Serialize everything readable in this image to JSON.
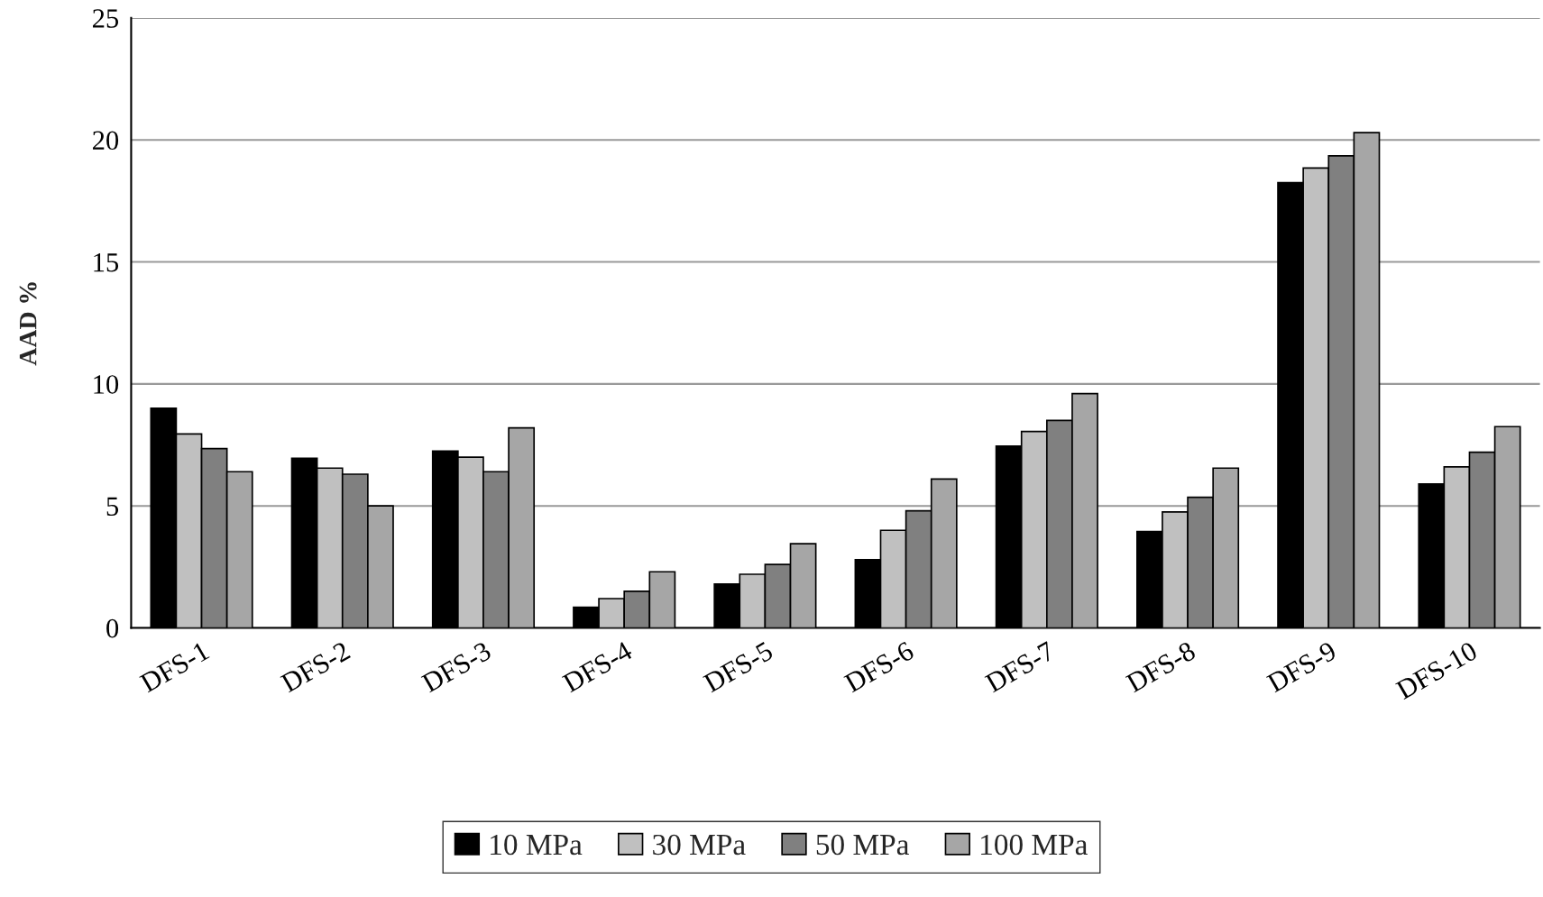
{
  "chart_data": {
    "type": "bar",
    "ylabel": "AAD %",
    "categories": [
      "DFS-1",
      "DFS-2",
      "DFS-3",
      "DFS-4",
      "DFS-5",
      "DFS-6",
      "DFS-7",
      "DFS-8",
      "DFS-9",
      "DFS-10"
    ],
    "series": [
      {
        "name": "10 MPa",
        "color": "#000000",
        "values": [
          9.0,
          6.95,
          7.25,
          0.85,
          1.8,
          2.8,
          7.45,
          3.95,
          18.25,
          5.9
        ]
      },
      {
        "name": "30 MPa",
        "color": "#c0c0c0",
        "values": [
          7.95,
          6.55,
          7.0,
          1.2,
          2.2,
          4.0,
          8.05,
          4.75,
          18.85,
          6.6
        ]
      },
      {
        "name": "50 MPa",
        "color": "#808080",
        "values": [
          7.35,
          6.3,
          6.4,
          1.5,
          2.6,
          4.8,
          8.5,
          5.35,
          19.35,
          7.2
        ]
      },
      {
        "name": "100 MPa",
        "color": "#a6a6a6",
        "values": [
          6.4,
          5.0,
          8.2,
          2.3,
          3.45,
          6.1,
          9.6,
          6.55,
          20.3,
          8.25
        ]
      }
    ],
    "ylim": [
      0,
      25
    ],
    "yticks": [
      0,
      5,
      10,
      15,
      20,
      25
    ],
    "grid": "y",
    "legend": "bottom"
  }
}
